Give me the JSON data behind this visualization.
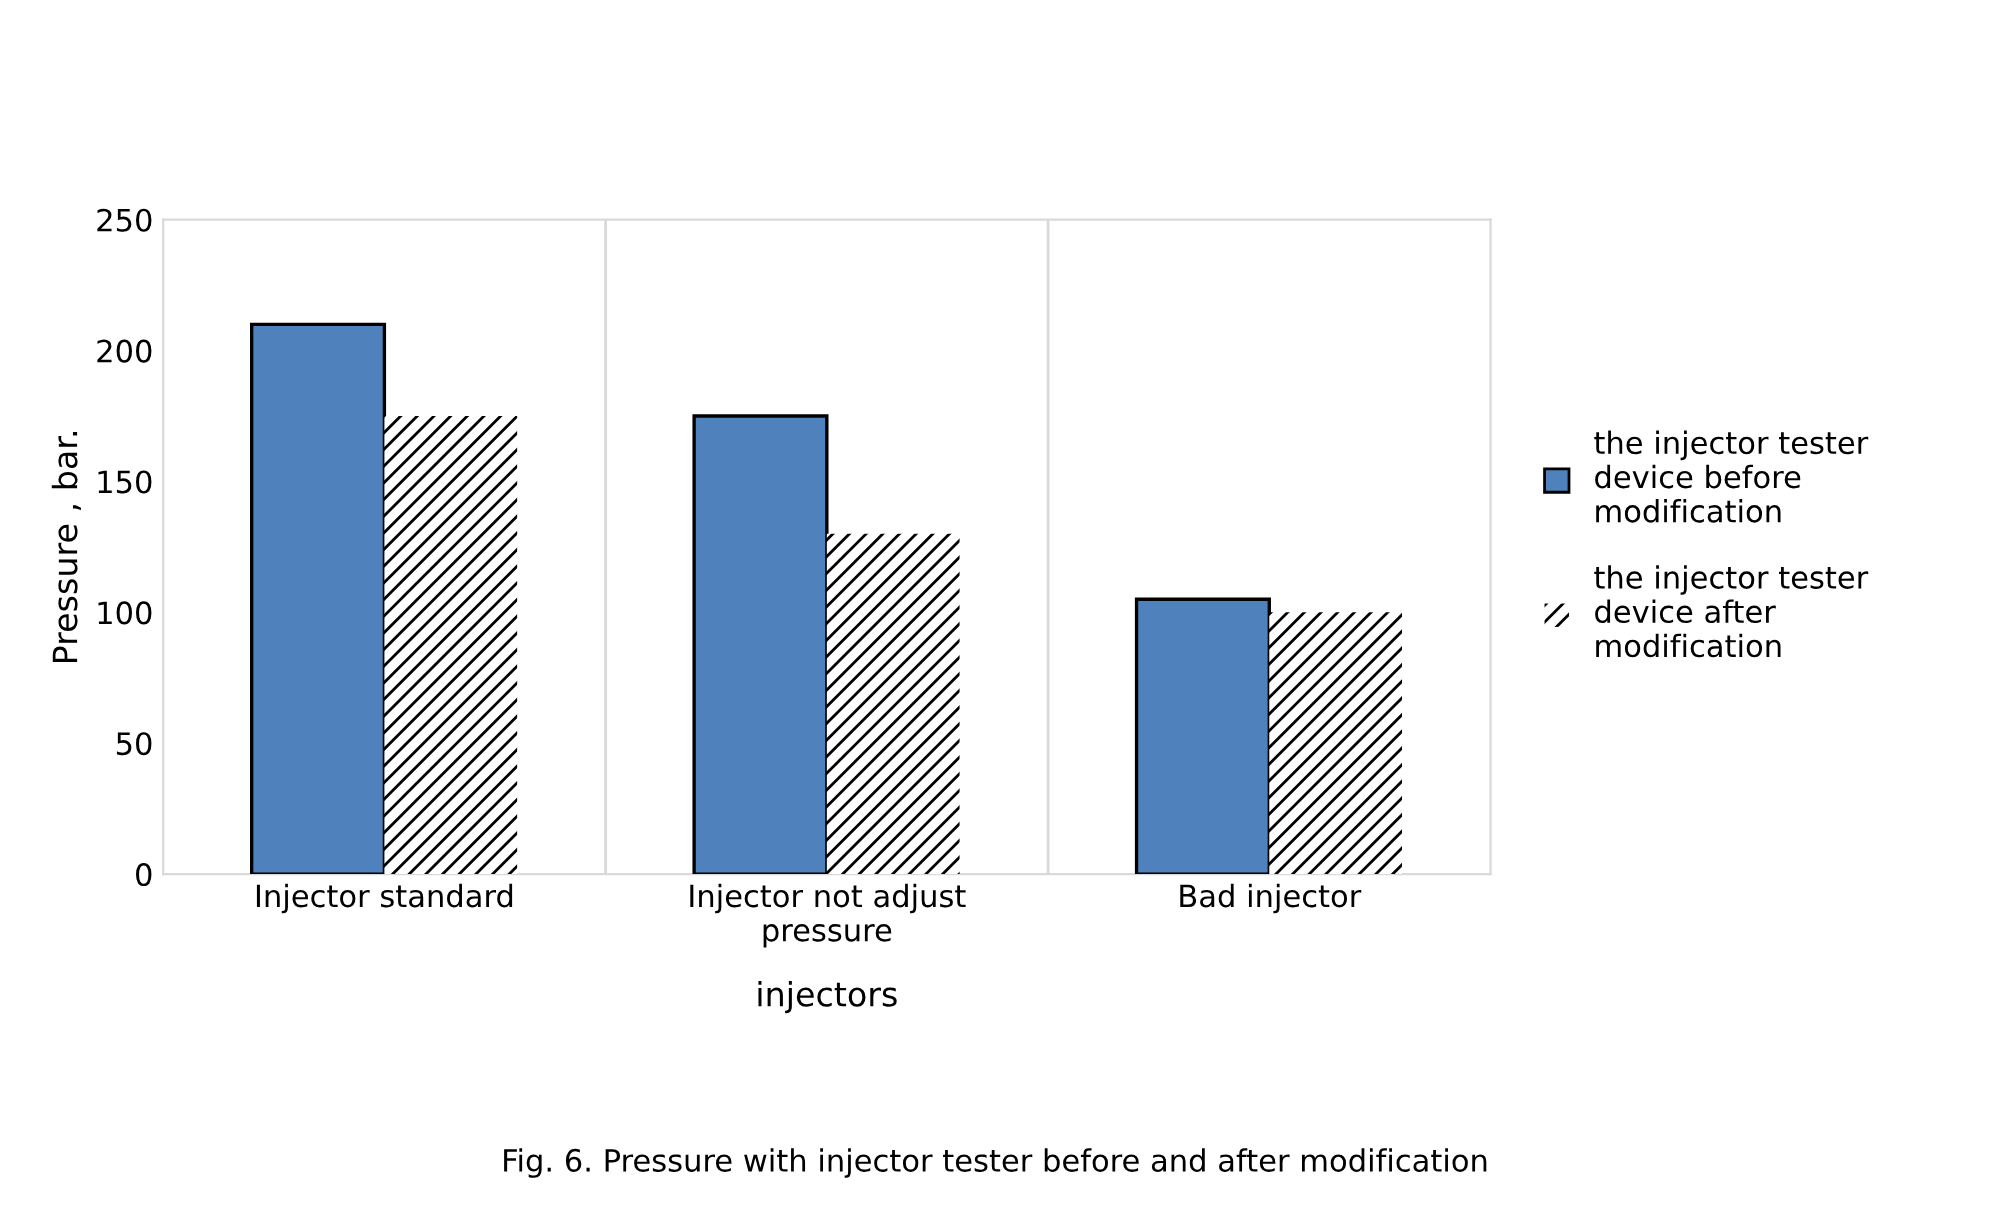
{
  "chart_data": {
    "type": "bar",
    "categories": [
      "Injector standard",
      "Injector not adjust\npressure",
      "Bad injector"
    ],
    "series": [
      {
        "name": "the injector tester\ndevice before\nmodification",
        "color": "#4f81bd",
        "values": [
          210,
          175,
          105
        ]
      },
      {
        "name": "the injector tester\ndevice after\nmodification",
        "color": "#000000",
        "values": [
          175,
          130,
          100
        ]
      }
    ],
    "xlabel": "injectors",
    "ylabel": "Pressure , bar.",
    "ylim": [
      0,
      250
    ],
    "yticks": [
      0,
      50,
      100,
      150,
      200,
      250
    ],
    "grid": "x",
    "legend": "right",
    "annotations": [
      "Fig. 6. Pressure with injector tester before and after modification"
    ]
  }
}
